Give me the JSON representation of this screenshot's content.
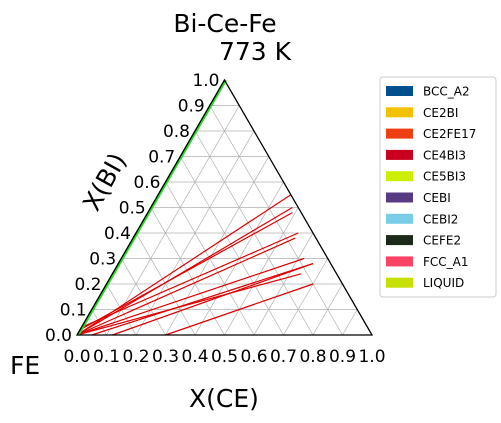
{
  "chart_data": {
    "type": "ternary",
    "title": "Bi-Ce-Fe",
    "subtitle": "773  K",
    "xlabel": "X(CE)",
    "ylabel": "X(BI)",
    "corner_label": "FE",
    "grid": true,
    "ticks": [
      "0.0",
      "0.1",
      "0.2",
      "0.3",
      "0.4",
      "0.5",
      "0.6",
      "0.7",
      "0.8",
      "0.9",
      "1.0"
    ],
    "colors": {
      "tie_line": "#e00000",
      "border": "#000000",
      "grid": "#b0b0b0",
      "liquid_edge": "#22dd22"
    },
    "legend_position": "right",
    "legend": [
      {
        "label": "BCC_A2",
        "color": "#004f8f"
      },
      {
        "label": "CE2BI",
        "color": "#f2c200"
      },
      {
        "label": "CE2FE17",
        "color": "#ee3e12"
      },
      {
        "label": "CE4BI3",
        "color": "#c8001e"
      },
      {
        "label": "CE5BI3",
        "color": "#ccee00"
      },
      {
        "label": "CEBI",
        "color": "#583a80"
      },
      {
        "label": "CEBI2",
        "color": "#7acde6"
      },
      {
        "label": "CEFE2",
        "color": "#1e2a19"
      },
      {
        "label": "FCC_A1",
        "color": "#fb4366"
      },
      {
        "label": "LIQUID",
        "color": "#c6e100"
      }
    ],
    "tie_lines": [
      {
        "from": [
          0.0,
          0.0
        ],
        "to": [
          0.45,
          0.55
        ]
      },
      {
        "from": [
          0.0,
          0.0
        ],
        "to": [
          0.48,
          0.5
        ]
      },
      {
        "from": [
          0.0,
          0.0
        ],
        "to": [
          0.55,
          0.38
        ]
      },
      {
        "from": [
          0.0,
          0.0
        ],
        "to": [
          0.62,
          0.3
        ]
      },
      {
        "from": [
          0.0,
          0.0
        ],
        "to": [
          0.64,
          0.24
        ]
      },
      {
        "from": [
          0.05,
          0.0
        ],
        "to": [
          0.66,
          0.28
        ]
      },
      {
        "from": [
          0.12,
          0.0
        ],
        "to": [
          0.66,
          0.28
        ]
      },
      {
        "from": [
          0.3,
          0.0
        ],
        "to": [
          0.7,
          0.2
        ]
      },
      {
        "from": [
          0.0,
          0.02
        ],
        "to": [
          0.49,
          0.48
        ]
      },
      {
        "from": [
          0.0,
          0.03
        ],
        "to": [
          0.55,
          0.4
        ]
      }
    ],
    "liquid_edge": {
      "from": [
        0.0,
        0.0
      ],
      "to": [
        0.0,
        1.0
      ]
    }
  }
}
